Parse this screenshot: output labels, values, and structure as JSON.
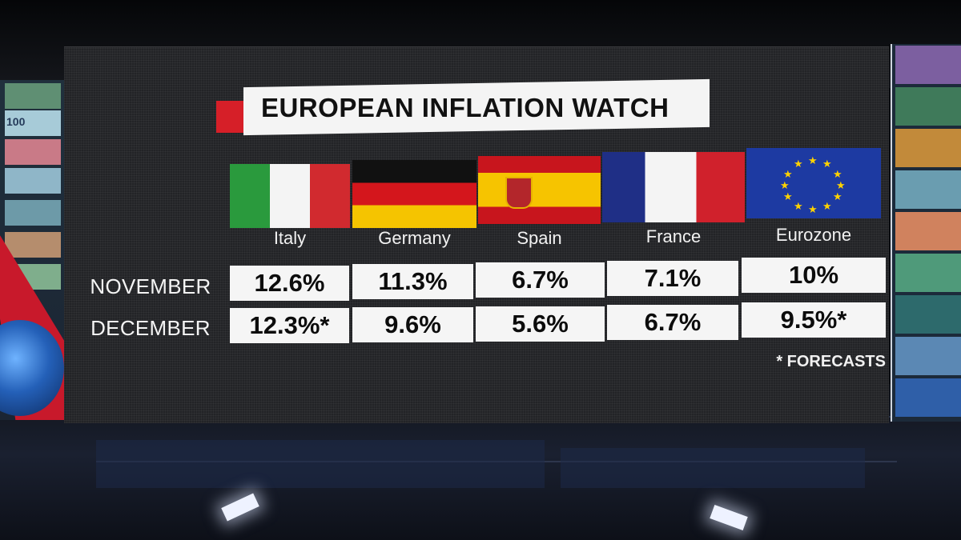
{
  "title": "EUROPEAN INFLATION WATCH",
  "countries": [
    "Italy",
    "Germany",
    "Spain",
    "France",
    "Eurozone"
  ],
  "rows": [
    {
      "label": "NOVEMBER",
      "values": [
        "12.6%",
        "11.3%",
        "6.7%",
        "7.1%",
        "10%"
      ]
    },
    {
      "label": "DECEMBER",
      "values": [
        "12.3%*",
        "9.6%",
        "5.6%",
        "6.7%",
        "9.5%*"
      ]
    }
  ],
  "footnote": "* FORECASTS",
  "side_wall_text": "100",
  "colors": {
    "title_accent": "#d61f28",
    "screen_background": "#232427",
    "cell_background": "#f5f5f5"
  }
}
